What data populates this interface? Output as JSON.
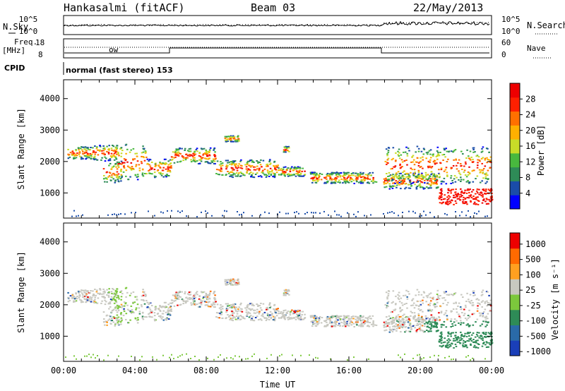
{
  "header": {
    "station": "Hankasalmi (fitACF)",
    "beam": "Beam 03",
    "date": "22/May/2013"
  },
  "top_panels": {
    "nsky_label": "N.Sky",
    "nsearch_label": "N.Search",
    "noise_ticks_left": [
      "10^5",
      "10^0"
    ],
    "noise_ticks_right": [
      "10^5",
      "10^0"
    ],
    "freq_label_1": "Freq.",
    "freq_label_2": "[MHz]",
    "freq_ticks": [
      "18",
      "8"
    ],
    "nave_ticks": [
      "60",
      "0"
    ],
    "nave_label": "Nave",
    "cpid_label": "CPID",
    "cpid_text": "normal (fast stereo) 153",
    "ow_label": "ow"
  },
  "chart_data": [
    {
      "type": "heatmap",
      "name": "power-panel",
      "ylabel": "Slant Range [km]",
      "xlabel": "",
      "y_ticks": [
        "1000",
        "2000",
        "3000",
        "4000"
      ],
      "ylim": [
        200,
        4600
      ],
      "xlim": [
        0,
        24
      ],
      "colorbar": {
        "label": "Power [dB]",
        "ticks": [
          "4",
          "8",
          "12",
          "16",
          "20",
          "24",
          "28"
        ],
        "colors": [
          "#0000ff",
          "#1a4ca8",
          "#2e8b57",
          "#48b83e",
          "#c8dc28",
          "#ffb000",
          "#ff7000",
          "#ff2000",
          "#ee0000"
        ]
      }
    },
    {
      "type": "heatmap",
      "name": "velocity-panel",
      "ylabel": "Slant Range [km]",
      "xlabel": "Time UT",
      "y_ticks": [
        "1000",
        "2000",
        "3000",
        "4000"
      ],
      "x_ticks": [
        "00:00",
        "04:00",
        "08:00",
        "12:00",
        "16:00",
        "20:00",
        "00:00"
      ],
      "ylim": [
        200,
        4600
      ],
      "xlim": [
        0,
        24
      ],
      "colorbar": {
        "label": "Velocity [m s⁻¹]",
        "ticks": [
          "1000",
          "500",
          "100",
          "25",
          "-25",
          "-100",
          "-500",
          "-1000"
        ],
        "colors": [
          "#1a3fb8",
          "#2a6aa8",
          "#2e8b57",
          "#7cc83c",
          "#c8c8c0",
          "#ffa020",
          "#ff6a00",
          "#ee0000"
        ]
      }
    }
  ]
}
